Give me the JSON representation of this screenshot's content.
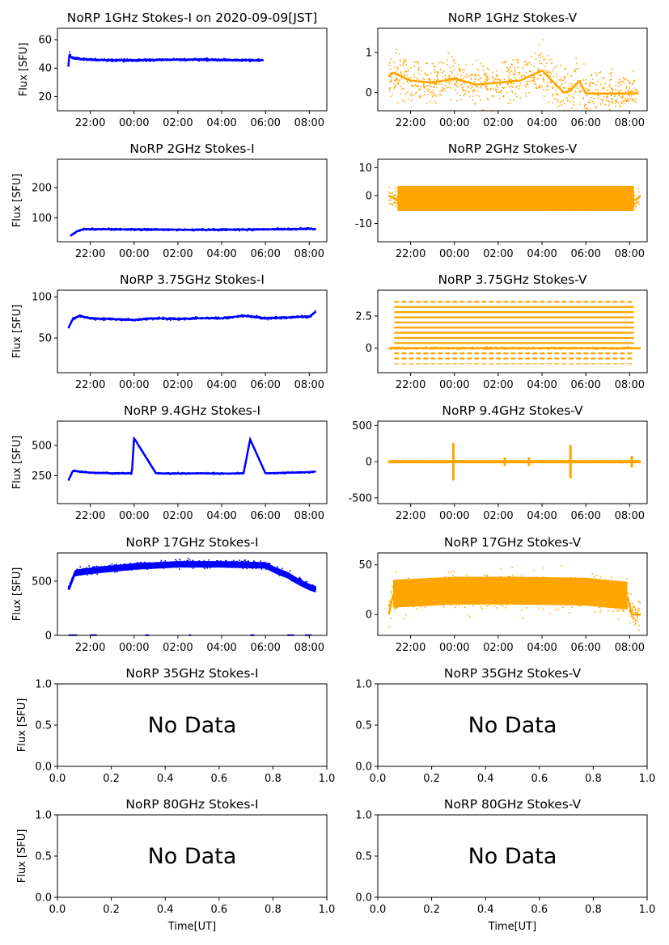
{
  "chart_data": [
    {
      "type": "scatter",
      "title": "NoRP 1GHz Stokes-I on 2020-09-09[JST]",
      "ylabel": "Flux [SFU]",
      "xlabel": "",
      "x_ticks": [
        "22:00",
        "00:00",
        "02:00",
        "04:00",
        "06:00",
        "08:00"
      ],
      "y_ticks": [
        20,
        40,
        60
      ],
      "ylim": [
        10,
        68
      ],
      "xlim": [
        20.5,
        32.8
      ],
      "color": "#0000ff",
      "series": [
        {
          "x": [
            21.0,
            21.05,
            21.1,
            21.2,
            21.5,
            22,
            23,
            24,
            25,
            26,
            27,
            28,
            29,
            29.9
          ],
          "y": [
            41,
            51,
            48,
            47,
            46.5,
            46,
            45.5,
            45.5,
            45.7,
            46,
            46,
            45.8,
            45.5,
            45.5
          ]
        }
      ],
      "no_data": false
    },
    {
      "type": "scatter",
      "title": "NoRP 1GHz Stokes-V",
      "ylabel": "",
      "xlabel": "",
      "x_ticks": [
        "22:00",
        "00:00",
        "02:00",
        "04:00",
        "06:00",
        "08:00"
      ],
      "y_ticks": [
        0,
        1
      ],
      "ylim": [
        -0.45,
        1.6
      ],
      "xlim": [
        20.5,
        32.8
      ],
      "color": "#ffa500",
      "series": [
        {
          "x": [
            21.0,
            21.2,
            22,
            23,
            24,
            25,
            26,
            27,
            28,
            29,
            29.3,
            29.7,
            30,
            31,
            32.4
          ],
          "y": [
            0.4,
            0.5,
            0.3,
            0.25,
            0.35,
            0.2,
            0.25,
            0.3,
            0.55,
            0.0,
            0.05,
            0.3,
            -0.02,
            -0.02,
            -0.02
          ]
        }
      ],
      "no_data": false
    },
    {
      "type": "scatter",
      "title": "NoRP 2GHz Stokes-I",
      "ylabel": "Flux [SFU]",
      "xlabel": "",
      "x_ticks": [
        "22:00",
        "00:00",
        "02:00",
        "04:00",
        "06:00",
        "08:00"
      ],
      "y_ticks": [
        100,
        200
      ],
      "ylim": [
        20,
        295
      ],
      "xlim": [
        20.5,
        32.8
      ],
      "color": "#0000ff",
      "series": [
        {
          "x": [
            21.1,
            21.4,
            21.7,
            22,
            24,
            26,
            28,
            30,
            32,
            32.3
          ],
          "y": [
            40,
            55,
            62,
            62,
            61,
            60,
            60,
            61,
            63,
            62
          ]
        }
      ],
      "no_data": false
    },
    {
      "type": "scatter",
      "title": "NoRP 2GHz Stokes-V",
      "ylabel": "",
      "xlabel": "",
      "x_ticks": [
        "22:00",
        "00:00",
        "02:00",
        "04:00",
        "06:00",
        "08:00"
      ],
      "y_ticks": [
        -10,
        0,
        10
      ],
      "ylim": [
        -16.5,
        13
      ],
      "xlim": [
        20.5,
        32.8
      ],
      "color": "#ffa500",
      "series": [
        {
          "x": [
            21.0,
            21.4,
            24,
            27,
            30,
            32,
            32.3,
            32.5
          ],
          "y": [
            0,
            -1.5,
            -1.5,
            -1.5,
            -1.5,
            -1.5,
            -1.5,
            0
          ]
        }
      ],
      "no_data": false
    },
    {
      "type": "scatter",
      "title": "NoRP 3.75GHz Stokes-I",
      "ylabel": "Flux [SFU]",
      "xlabel": "",
      "x_ticks": [
        "22:00",
        "00:00",
        "02:00",
        "04:00",
        "06:00",
        "08:00"
      ],
      "y_ticks": [
        50,
        100
      ],
      "ylim": [
        8,
        108
      ],
      "xlim": [
        20.5,
        32.8
      ],
      "color": "#0000ff",
      "series": [
        {
          "x": [
            21.0,
            21.2,
            21.5,
            22,
            23,
            24,
            25,
            26,
            27,
            28,
            29,
            30,
            31,
            32,
            32.3
          ],
          "y": [
            62,
            73,
            77,
            74,
            73,
            72,
            74,
            73,
            74,
            74,
            77,
            74,
            75,
            76,
            82
          ]
        }
      ],
      "no_data": false
    },
    {
      "type": "scatter",
      "title": "NoRP 3.75GHz Stokes-V",
      "ylabel": "",
      "xlabel": "",
      "x_ticks": [
        "22:00",
        "00:00",
        "02:00",
        "04:00",
        "06:00",
        "08:00"
      ],
      "y_ticks": [
        0.0,
        2.5
      ],
      "ylim": [
        -1.9,
        4.5
      ],
      "xlim": [
        20.5,
        32.8
      ],
      "color": "#ffa500",
      "series": [
        {
          "x": [
            21.0,
            32.5
          ],
          "y": [
            0,
            0
          ]
        }
      ],
      "no_data": false
    },
    {
      "type": "scatter",
      "title": "NoRP 9.4GHz Stokes-I",
      "ylabel": "Flux [SFU]",
      "xlabel": "",
      "x_ticks": [
        "22:00",
        "00:00",
        "02:00",
        "04:00",
        "06:00",
        "08:00"
      ],
      "y_ticks": [
        250,
        500
      ],
      "ylim": [
        20,
        700
      ],
      "xlim": [
        20.5,
        32.8
      ],
      "color": "#0000ff",
      "series": [
        {
          "x": [
            21.0,
            21.2,
            22,
            23,
            23.9,
            24,
            25,
            26,
            27,
            28,
            29,
            29.3,
            30,
            31,
            32,
            32.3
          ],
          "y": [
            210,
            290,
            275,
            270,
            270,
            560,
            270,
            268,
            270,
            268,
            270,
            550,
            270,
            275,
            280,
            285
          ]
        }
      ],
      "no_data": false
    },
    {
      "type": "scatter",
      "title": "NoRP 9.4GHz Stokes-V",
      "ylabel": "",
      "xlabel": "",
      "x_ticks": [
        "22:00",
        "00:00",
        "02:00",
        "04:00",
        "06:00",
        "08:00"
      ],
      "y_ticks": [
        -500,
        0,
        500
      ],
      "ylim": [
        -580,
        560
      ],
      "xlim": [
        20.5,
        32.8
      ],
      "color": "#ffa500",
      "series": [
        {
          "x": [
            21.0,
            32.5
          ],
          "y": [
            0,
            0
          ]
        }
      ],
      "no_data": false
    },
    {
      "type": "scatter",
      "title": "NoRP 17GHz Stokes-I",
      "ylabel": "Flux [SFU]",
      "xlabel": "",
      "x_ticks": [
        "22:00",
        "00:00",
        "02:00",
        "04:00",
        "06:00",
        "08:00"
      ],
      "y_ticks": [
        0,
        500
      ],
      "ylim": [
        0,
        760
      ],
      "xlim": [
        20.5,
        32.8
      ],
      "color": "#0000ff",
      "series": [
        {
          "x": [
            21.0,
            21.3,
            22,
            23,
            24,
            25,
            26,
            27,
            28,
            29,
            30,
            30.5,
            31,
            31.5,
            32,
            32.3
          ],
          "y": [
            420,
            580,
            600,
            620,
            640,
            650,
            660,
            660,
            660,
            655,
            650,
            600,
            560,
            500,
            450,
            430
          ]
        }
      ],
      "no_data": false
    },
    {
      "type": "scatter",
      "title": "NoRP 17GHz Stokes-V",
      "ylabel": "",
      "xlabel": "",
      "x_ticks": [
        "22:00",
        "00:00",
        "02:00",
        "04:00",
        "06:00",
        "08:00"
      ],
      "y_ticks": [
        0,
        50
      ],
      "ylim": [
        -21,
        62
      ],
      "xlim": [
        20.5,
        32.8
      ],
      "color": "#ffa500",
      "series": [
        {
          "x": [
            21.0,
            21.2,
            24,
            27,
            30,
            31.9,
            32.1,
            32.5
          ],
          "y": [
            0,
            20,
            23,
            23,
            22,
            18,
            0,
            0
          ]
        }
      ],
      "no_data": false
    },
    {
      "type": "scatter",
      "title": "NoRP 35GHz Stokes-I",
      "ylabel": "Flux [SFU]",
      "xlabel": "",
      "x_ticks": [
        "0.0",
        "0.2",
        "0.4",
        "0.6",
        "0.8",
        "1.0"
      ],
      "y_ticks": [
        "0.0",
        "0.5",
        "1.0"
      ],
      "ylim": [
        0,
        1
      ],
      "xlim": [
        0,
        1
      ],
      "annotation": "No Data",
      "no_data": true
    },
    {
      "type": "scatter",
      "title": "NoRP 35GHz Stokes-V",
      "ylabel": "",
      "xlabel": "",
      "x_ticks": [
        "0.0",
        "0.2",
        "0.4",
        "0.6",
        "0.8",
        "1.0"
      ],
      "y_ticks": [
        "0.0",
        "0.5",
        "1.0"
      ],
      "ylim": [
        0,
        1
      ],
      "xlim": [
        0,
        1
      ],
      "annotation": "No Data",
      "no_data": true
    },
    {
      "type": "scatter",
      "title": "NoRP 80GHz Stokes-I",
      "ylabel": "Flux [SFU]",
      "xlabel": "Time[UT]",
      "x_ticks": [
        "0.0",
        "0.2",
        "0.4",
        "0.6",
        "0.8",
        "1.0"
      ],
      "y_ticks": [
        "0.0",
        "0.5",
        "1.0"
      ],
      "ylim": [
        0,
        1
      ],
      "xlim": [
        0,
        1
      ],
      "annotation": "No Data",
      "no_data": true
    },
    {
      "type": "scatter",
      "title": "NoRP 80GHz Stokes-V",
      "ylabel": "",
      "xlabel": "Time[UT]",
      "x_ticks": [
        "0.0",
        "0.2",
        "0.4",
        "0.6",
        "0.8",
        "1.0"
      ],
      "y_ticks": [
        "0.0",
        "0.5",
        "1.0"
      ],
      "ylim": [
        0,
        1
      ],
      "xlim": [
        0,
        1
      ],
      "annotation": "No Data",
      "no_data": true
    }
  ]
}
